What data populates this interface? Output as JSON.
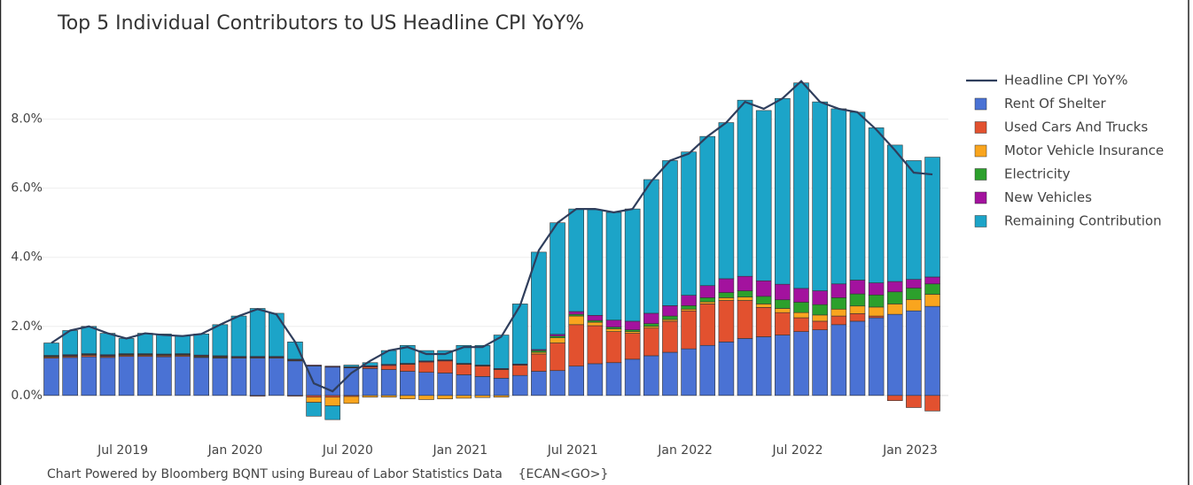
{
  "chart_data": {
    "type": "bar",
    "barmode": "relative",
    "title": "Top 5 Individual Contributors to US Headline CPI YoY%",
    "note": "Chart Powered by Bloomberg BQNT using Bureau of Labor Statistics Data    {ECAN<GO>}",
    "categories": [
      null,
      null,
      null,
      null,
      "Jul 2019",
      null,
      null,
      null,
      null,
      null,
      "Jan 2020",
      null,
      null,
      null,
      null,
      null,
      "Jul 2020",
      null,
      null,
      null,
      null,
      null,
      "Jan 2021",
      null,
      null,
      null,
      null,
      null,
      "Jul 2021",
      null,
      null,
      null,
      null,
      null,
      "Jan 2022",
      null,
      null,
      null,
      null,
      null,
      "Jul 2022",
      null,
      null,
      null,
      null,
      null,
      "Jan 2023",
      null
    ],
    "ylim": [
      -0.85,
      9.4
    ],
    "yticks": [
      {
        "value": 0,
        "label": "0.0%"
      },
      {
        "value": 2,
        "label": "2.0%"
      },
      {
        "value": 4,
        "label": "4.0%"
      },
      {
        "value": 6,
        "label": "6.0%"
      },
      {
        "value": 8,
        "label": "8.0%"
      }
    ],
    "grid": true,
    "legend": "right",
    "series": [
      {
        "name": "Headline CPI YoY%",
        "type": "line",
        "color": "#2f3e5c",
        "values": [
          1.52,
          1.88,
          2.0,
          1.8,
          1.65,
          1.8,
          1.75,
          1.72,
          1.78,
          2.05,
          2.3,
          2.5,
          2.35,
          1.55,
          0.35,
          0.12,
          0.65,
          1.0,
          1.3,
          1.4,
          1.2,
          1.2,
          1.4,
          1.4,
          1.7,
          2.6,
          4.2,
          5.0,
          5.4,
          5.4,
          5.3,
          5.4,
          6.2,
          6.8,
          7.0,
          7.5,
          7.9,
          8.5,
          8.3,
          8.6,
          9.1,
          8.5,
          8.3,
          8.2,
          7.7,
          7.1,
          6.45,
          6.4
        ]
      },
      {
        "name": "Rent Of Shelter",
        "color": "#4a72d4",
        "values": [
          1.08,
          1.1,
          1.12,
          1.1,
          1.13,
          1.13,
          1.12,
          1.13,
          1.1,
          1.08,
          1.08,
          1.08,
          1.08,
          1.0,
          0.85,
          0.82,
          0.8,
          0.78,
          0.75,
          0.7,
          0.67,
          0.65,
          0.6,
          0.55,
          0.5,
          0.58,
          0.7,
          0.72,
          0.85,
          0.92,
          0.95,
          1.05,
          1.15,
          1.25,
          1.35,
          1.45,
          1.55,
          1.65,
          1.7,
          1.75,
          1.85,
          1.9,
          2.05,
          2.15,
          2.25,
          2.35,
          2.45,
          2.58
        ]
      },
      {
        "name": "Used Cars And Trucks",
        "color": "#e2512f",
        "values": [
          0.03,
          0.03,
          0.04,
          0.03,
          0.03,
          0.03,
          0.03,
          0.03,
          0.02,
          0.02,
          0.0,
          -0.02,
          0.0,
          -0.02,
          -0.05,
          -0.05,
          -0.03,
          0.05,
          0.12,
          0.2,
          0.3,
          0.35,
          0.3,
          0.3,
          0.25,
          0.3,
          0.5,
          0.8,
          1.2,
          1.1,
          0.9,
          0.75,
          0.8,
          0.9,
          1.1,
          1.2,
          1.2,
          1.1,
          0.85,
          0.65,
          0.4,
          0.25,
          0.25,
          0.22,
          0.05,
          -0.15,
          -0.35,
          -0.45
        ]
      },
      {
        "name": "Motor Vehicle Insurance",
        "color": "#f9a51e",
        "values": [
          0.02,
          0.02,
          0.02,
          0.02,
          0.02,
          0.02,
          0.02,
          0.02,
          0.02,
          0.02,
          0.02,
          0.02,
          0.02,
          0.02,
          -0.15,
          -0.25,
          -0.2,
          -0.05,
          -0.05,
          -0.1,
          -0.12,
          -0.1,
          -0.08,
          -0.06,
          -0.05,
          0.0,
          0.05,
          0.15,
          0.25,
          0.1,
          0.08,
          0.05,
          0.05,
          0.05,
          0.05,
          0.06,
          0.08,
          0.1,
          0.1,
          0.12,
          0.15,
          0.18,
          0.2,
          0.22,
          0.26,
          0.3,
          0.33,
          0.35
        ]
      },
      {
        "name": "Electricity",
        "color": "#2ca02c",
        "values": [
          0.01,
          0.01,
          0.01,
          0.01,
          0.01,
          0.01,
          0.01,
          0.01,
          0.01,
          0.01,
          0.01,
          0.01,
          0.01,
          0.01,
          0.01,
          0.01,
          0.01,
          0.01,
          0.01,
          0.01,
          0.01,
          0.01,
          0.01,
          0.01,
          0.01,
          0.01,
          0.05,
          0.05,
          0.05,
          0.05,
          0.05,
          0.05,
          0.08,
          0.1,
          0.1,
          0.12,
          0.15,
          0.18,
          0.22,
          0.25,
          0.3,
          0.3,
          0.33,
          0.35,
          0.35,
          0.35,
          0.33,
          0.3
        ]
      },
      {
        "name": "New Vehicles",
        "color": "#a3129e",
        "values": [
          0.02,
          0.02,
          0.02,
          0.02,
          0.02,
          0.02,
          0.02,
          0.02,
          0.02,
          0.02,
          0.02,
          0.02,
          0.02,
          0.02,
          0.02,
          0.02,
          0.02,
          0.02,
          0.02,
          0.02,
          0.02,
          0.02,
          0.02,
          0.02,
          0.02,
          0.02,
          0.03,
          0.05,
          0.08,
          0.15,
          0.2,
          0.25,
          0.3,
          0.3,
          0.3,
          0.35,
          0.4,
          0.42,
          0.45,
          0.45,
          0.4,
          0.4,
          0.4,
          0.4,
          0.35,
          0.3,
          0.25,
          0.2
        ]
      },
      {
        "name": "Remaining Contribution",
        "color": "#1ca4c8",
        "values": [
          0.36,
          0.7,
          0.79,
          0.62,
          0.44,
          0.59,
          0.58,
          0.51,
          0.61,
          0.9,
          1.17,
          1.39,
          1.25,
          0.5,
          -0.4,
          -0.4,
          0.05,
          0.09,
          0.4,
          0.52,
          0.3,
          0.27,
          0.52,
          0.57,
          0.97,
          1.74,
          2.82,
          3.23,
          2.97,
          3.06,
          3.12,
          3.25,
          3.87,
          4.2,
          4.15,
          4.32,
          4.52,
          5.1,
          4.93,
          5.38,
          5.95,
          5.47,
          5.07,
          4.86,
          4.49,
          3.95,
          3.44,
          3.47
        ]
      }
    ]
  }
}
